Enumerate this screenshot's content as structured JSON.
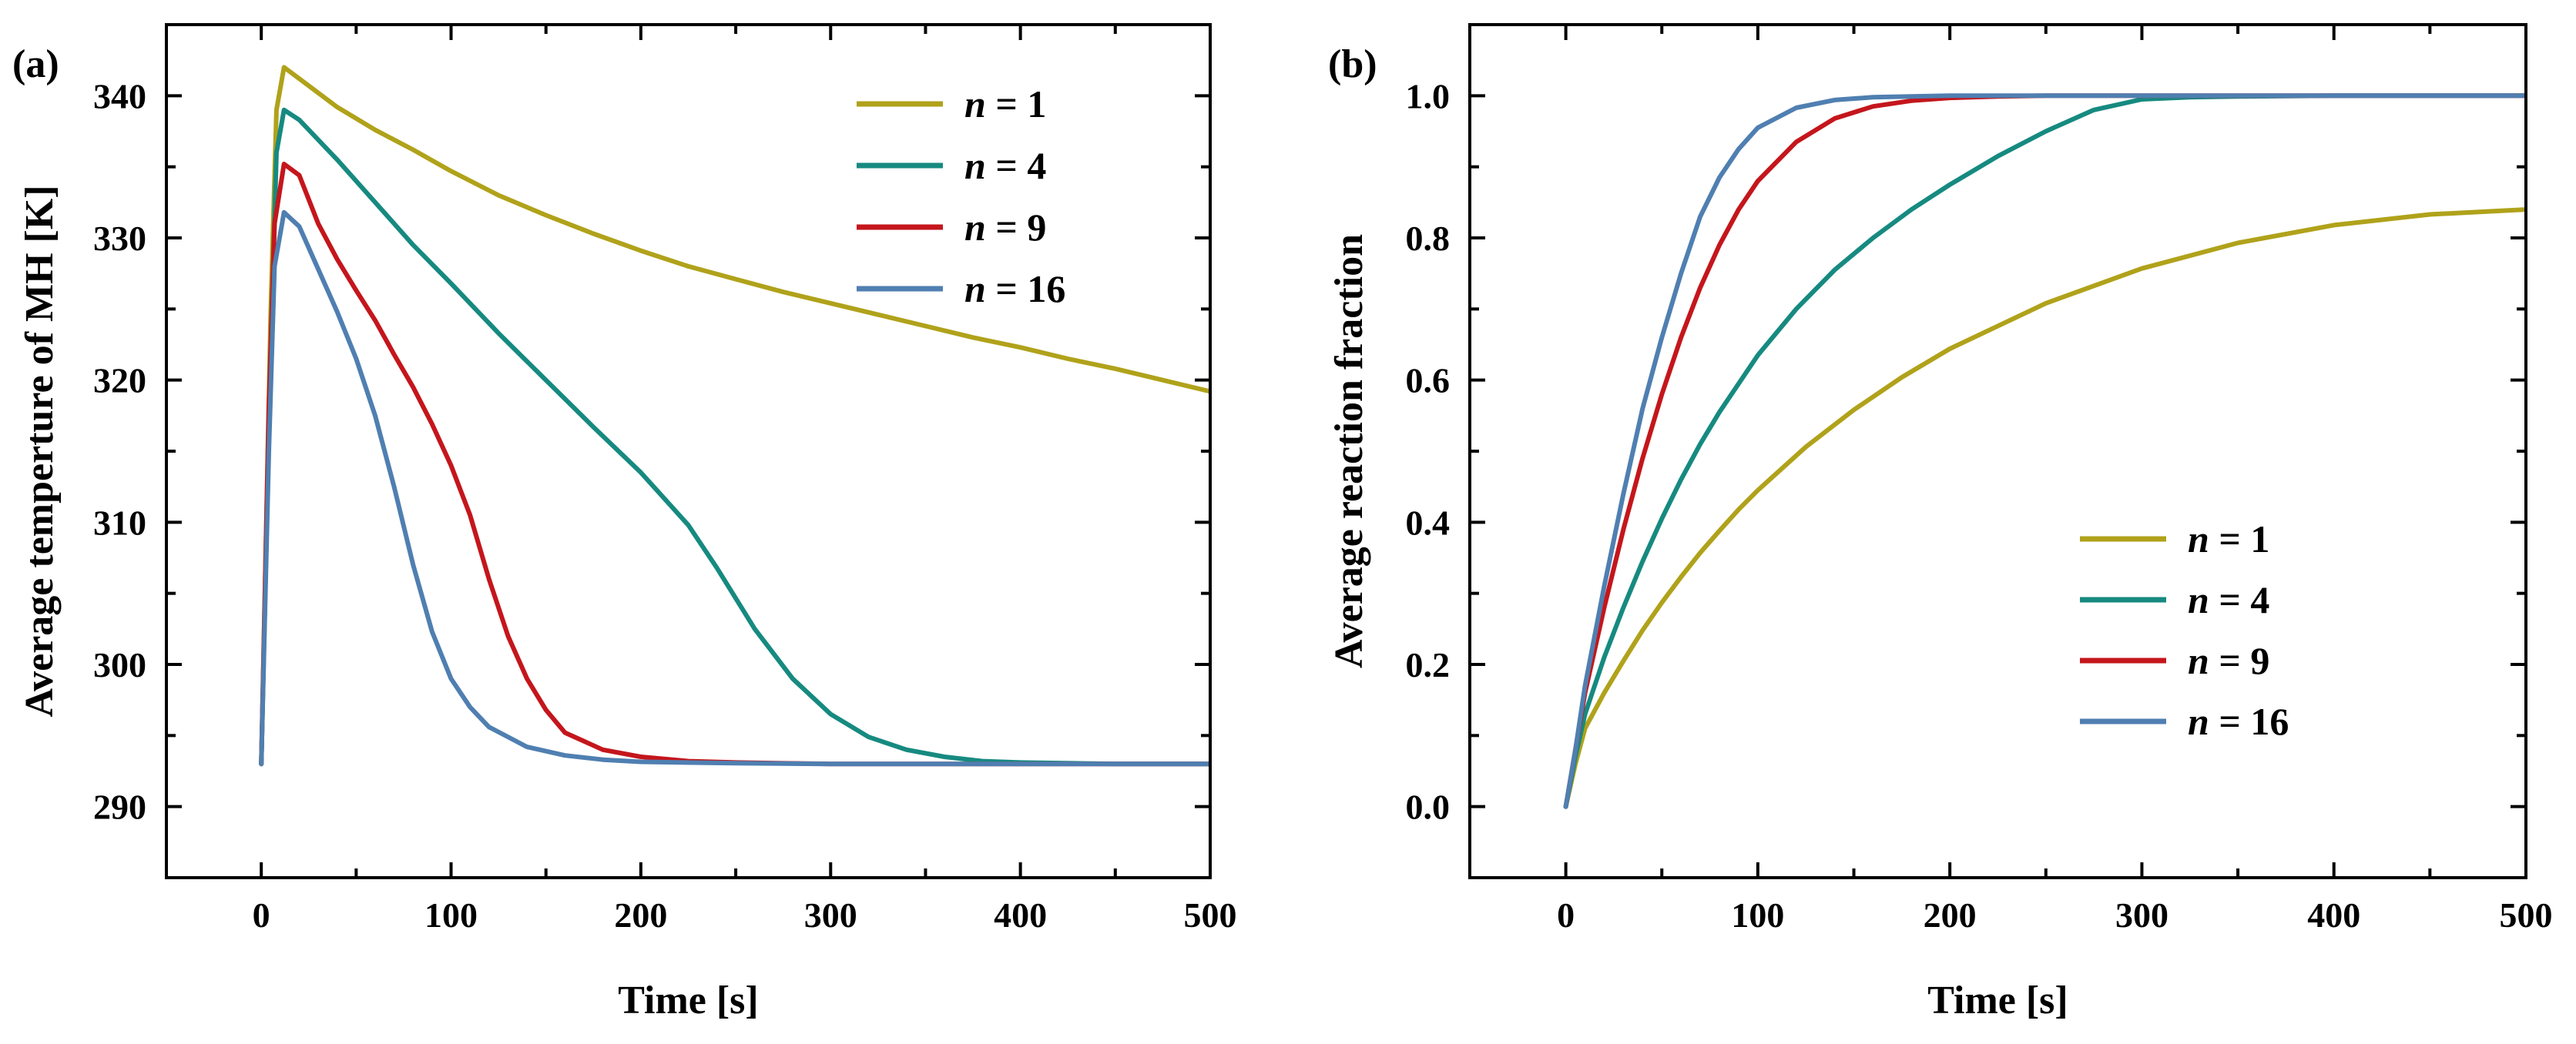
{
  "figure_labels": [
    "(a)",
    "(b)"
  ],
  "legend_prefix": "n",
  "legend_eq": " = ",
  "chart_data": [
    {
      "type": "line",
      "panel": "(a)",
      "xlabel": "Time [s]",
      "ylabel": "Average temperture of MH [K]",
      "xlim": [
        -50,
        500
      ],
      "ylim": [
        285,
        345
      ],
      "xticks": [
        0,
        100,
        200,
        300,
        400,
        500
      ],
      "yticks": [
        290,
        300,
        310,
        320,
        330,
        340
      ],
      "legend_position": "top-right",
      "series": [
        {
          "name": "1",
          "color": "#b0a21a",
          "x": [
            0,
            5,
            8,
            12,
            20,
            40,
            60,
            80,
            100,
            125,
            150,
            175,
            200,
            225,
            250,
            275,
            300,
            325,
            350,
            375,
            400,
            425,
            450,
            475,
            500
          ],
          "y": [
            293,
            325,
            339,
            342,
            341.2,
            339.2,
            337.6,
            336.2,
            334.7,
            333.0,
            331.6,
            330.3,
            329.1,
            328.0,
            327.1,
            326.2,
            325.4,
            324.6,
            323.8,
            323.0,
            322.3,
            321.5,
            320.8,
            320.0,
            319.2
          ]
        },
        {
          "name": "4",
          "color": "#168a80",
          "x": [
            0,
            5,
            8,
            12,
            20,
            40,
            60,
            80,
            100,
            125,
            150,
            175,
            200,
            225,
            240,
            260,
            280,
            300,
            320,
            340,
            360,
            380,
            400,
            450,
            500
          ],
          "y": [
            293,
            322,
            336,
            339,
            338.3,
            335.5,
            332.5,
            329.5,
            326.8,
            323.3,
            320.0,
            316.7,
            313.5,
            309.8,
            306.8,
            302.5,
            299.0,
            296.5,
            294.9,
            294.0,
            293.5,
            293.2,
            293.1,
            293.0,
            293.0
          ]
        },
        {
          "name": "9",
          "color": "#c4161c",
          "x": [
            0,
            4,
            7,
            12,
            20,
            30,
            40,
            50,
            60,
            70,
            80,
            90,
            100,
            110,
            120,
            130,
            140,
            150,
            160,
            180,
            200,
            225,
            250,
            300,
            500
          ],
          "y": [
            293,
            318,
            331,
            335.2,
            334.4,
            331.0,
            328.5,
            326.3,
            324.2,
            321.8,
            319.5,
            316.9,
            314.0,
            310.5,
            306.0,
            302.0,
            299.0,
            296.8,
            295.2,
            294.0,
            293.5,
            293.2,
            293.1,
            293.0,
            293.0
          ]
        },
        {
          "name": "16",
          "color": "#4f7fb1",
          "x": [
            0,
            4,
            7,
            12,
            20,
            30,
            40,
            50,
            60,
            70,
            80,
            90,
            100,
            110,
            120,
            140,
            160,
            180,
            200,
            250,
            300,
            500
          ],
          "y": [
            293,
            315,
            328,
            331.8,
            330.8,
            327.8,
            324.8,
            321.5,
            317.5,
            312.5,
            307.0,
            302.3,
            299.0,
            297.0,
            295.6,
            294.2,
            293.6,
            293.3,
            293.15,
            293.05,
            293.0,
            293.0
          ]
        }
      ]
    },
    {
      "type": "line",
      "panel": "(b)",
      "xlabel": "Time [s]",
      "ylabel": "Average reaction fraction",
      "xlim": [
        -50,
        500
      ],
      "ylim": [
        -0.1,
        1.1
      ],
      "xticks": [
        0,
        100,
        200,
        300,
        400,
        500
      ],
      "yticks": [
        0.0,
        0.2,
        0.4,
        0.6,
        0.8,
        1.0
      ],
      "legend_position": "bottom-right",
      "series": [
        {
          "name": "1",
          "color": "#b0a21a",
          "x": [
            0,
            5,
            10,
            20,
            30,
            40,
            50,
            60,
            70,
            80,
            90,
            100,
            125,
            150,
            175,
            200,
            250,
            300,
            350,
            400,
            450,
            500
          ],
          "y": [
            0,
            0.06,
            0.11,
            0.16,
            0.205,
            0.248,
            0.287,
            0.323,
            0.357,
            0.388,
            0.418,
            0.445,
            0.506,
            0.558,
            0.604,
            0.644,
            0.708,
            0.757,
            0.793,
            0.818,
            0.833,
            0.84
          ]
        },
        {
          "name": "4",
          "color": "#168a80",
          "x": [
            0,
            5,
            10,
            20,
            30,
            40,
            50,
            60,
            70,
            80,
            100,
            120,
            140,
            160,
            180,
            200,
            225,
            250,
            275,
            300,
            325,
            350,
            400,
            500
          ],
          "y": [
            0,
            0.07,
            0.13,
            0.21,
            0.28,
            0.345,
            0.405,
            0.46,
            0.51,
            0.555,
            0.635,
            0.7,
            0.755,
            0.8,
            0.84,
            0.875,
            0.915,
            0.95,
            0.98,
            0.995,
            0.998,
            0.999,
            1.0,
            1.0
          ]
        },
        {
          "name": "9",
          "color": "#c4161c",
          "x": [
            0,
            5,
            10,
            20,
            30,
            40,
            50,
            60,
            70,
            80,
            90,
            100,
            120,
            140,
            160,
            180,
            200,
            225,
            250,
            300,
            500
          ],
          "y": [
            0,
            0.08,
            0.16,
            0.28,
            0.39,
            0.49,
            0.58,
            0.66,
            0.73,
            0.79,
            0.84,
            0.88,
            0.935,
            0.968,
            0.985,
            0.993,
            0.997,
            0.999,
            1.0,
            1.0,
            1.0
          ]
        },
        {
          "name": "16",
          "color": "#4f7fb1",
          "x": [
            0,
            5,
            10,
            20,
            30,
            40,
            50,
            60,
            70,
            80,
            90,
            100,
            120,
            140,
            160,
            180,
            200,
            250,
            300,
            500
          ],
          "y": [
            0,
            0.08,
            0.17,
            0.31,
            0.44,
            0.56,
            0.66,
            0.75,
            0.83,
            0.885,
            0.925,
            0.955,
            0.983,
            0.994,
            0.998,
            0.999,
            1.0,
            1.0,
            1.0,
            1.0
          ]
        }
      ]
    }
  ]
}
